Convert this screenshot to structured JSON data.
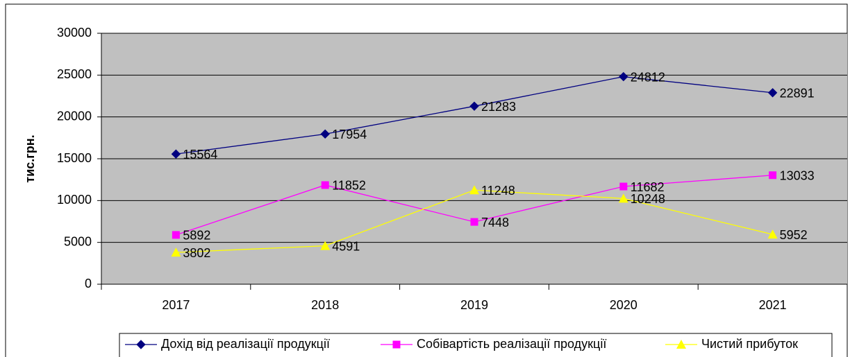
{
  "chart_data": {
    "type": "line",
    "y_label": "тис.грн.",
    "categories": [
      "2017",
      "2018",
      "2019",
      "2020",
      "2021"
    ],
    "series": [
      {
        "name": "Дохід від реалізації продукції",
        "color": "#000080",
        "marker": "diamond",
        "values": [
          15564,
          17954,
          21283,
          24812,
          22891
        ]
      },
      {
        "name": "Собівартість реалізації продукції",
        "color": "#ff00ff",
        "marker": "square",
        "values": [
          5892,
          11852,
          7448,
          11682,
          13033
        ]
      },
      {
        "name": "Чистий прибуток",
        "color": "#ffff00",
        "marker": "triangle",
        "values": [
          3802,
          4591,
          11248,
          10248,
          5952
        ]
      }
    ],
    "ylim": [
      0,
      30000
    ],
    "yticks": [
      0,
      5000,
      10000,
      15000,
      20000,
      25000,
      30000
    ],
    "grid": true,
    "legend": "bottom"
  }
}
